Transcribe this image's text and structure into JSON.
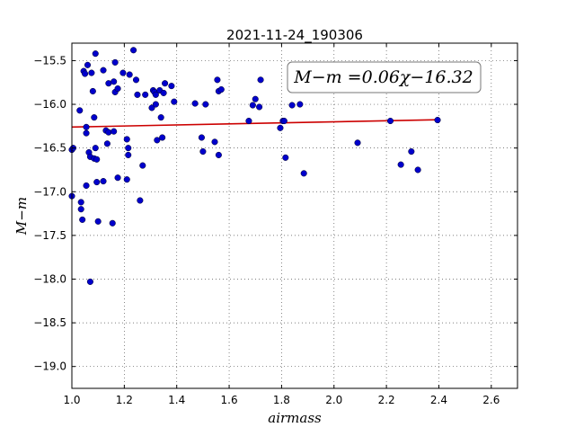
{
  "chart_data": {
    "type": "scatter",
    "title": "2021-11-24_190306",
    "xlabel": "airmass",
    "ylabel": "M−m",
    "xlim": [
      1.0,
      2.7
    ],
    "ylim": [
      -19.25,
      -15.3
    ],
    "xticks": [
      "1.0",
      "1.2",
      "1.4",
      "1.6",
      "1.8",
      "2.0",
      "2.2",
      "2.4",
      "2.6"
    ],
    "yticks": [
      "−15.5",
      "−16.0",
      "−16.5",
      "−17.0",
      "−17.5",
      "−18.0",
      "−18.5",
      "−19.0"
    ],
    "grid": true,
    "annotation": "M−m =0.06χ−16.32",
    "fit": {
      "slope": 0.06,
      "intercept": -16.32,
      "color": "#cc0000"
    },
    "point_color": "#0000cc",
    "points": [
      [
        1.0,
        -16.52
      ],
      [
        1.005,
        -16.5
      ],
      [
        1.0,
        -17.05
      ],
      [
        1.03,
        -16.07
      ],
      [
        1.035,
        -17.12
      ],
      [
        1.035,
        -17.2
      ],
      [
        1.04,
        -17.32
      ],
      [
        1.045,
        -15.62
      ],
      [
        1.05,
        -15.65
      ],
      [
        1.055,
        -16.26
      ],
      [
        1.055,
        -16.33
      ],
      [
        1.055,
        -16.93
      ],
      [
        1.06,
        -15.55
      ],
      [
        1.065,
        -16.55
      ],
      [
        1.07,
        -16.6
      ],
      [
        1.07,
        -18.03
      ],
      [
        1.075,
        -15.64
      ],
      [
        1.08,
        -15.85
      ],
      [
        1.085,
        -16.15
      ],
      [
        1.085,
        -16.62
      ],
      [
        1.09,
        -16.5
      ],
      [
        1.09,
        -15.42
      ],
      [
        1.095,
        -16.63
      ],
      [
        1.095,
        -16.89
      ],
      [
        1.1,
        -17.34
      ],
      [
        1.12,
        -16.88
      ],
      [
        1.12,
        -15.61
      ],
      [
        1.13,
        -16.3
      ],
      [
        1.135,
        -16.45
      ],
      [
        1.14,
        -15.76
      ],
      [
        1.14,
        -16.32
      ],
      [
        1.155,
        -17.36
      ],
      [
        1.16,
        -16.31
      ],
      [
        1.16,
        -15.74
      ],
      [
        1.165,
        -15.52
      ],
      [
        1.165,
        -15.86
      ],
      [
        1.175,
        -15.82
      ],
      [
        1.175,
        -16.84
      ],
      [
        1.195,
        -15.64
      ],
      [
        1.21,
        -16.4
      ],
      [
        1.21,
        -16.86
      ],
      [
        1.215,
        -16.58
      ],
      [
        1.215,
        -16.5
      ],
      [
        1.22,
        -15.66
      ],
      [
        1.235,
        -15.38
      ],
      [
        1.245,
        -15.72
      ],
      [
        1.25,
        -15.89
      ],
      [
        1.26,
        -17.1
      ],
      [
        1.27,
        -16.7
      ],
      [
        1.28,
        -15.89
      ],
      [
        1.305,
        -16.04
      ],
      [
        1.31,
        -15.84
      ],
      [
        1.315,
        -15.86
      ],
      [
        1.32,
        -16.0
      ],
      [
        1.32,
        -15.89
      ],
      [
        1.325,
        -16.41
      ],
      [
        1.335,
        -15.84
      ],
      [
        1.34,
        -16.15
      ],
      [
        1.345,
        -16.38
      ],
      [
        1.35,
        -15.87
      ],
      [
        1.355,
        -15.76
      ],
      [
        1.38,
        -15.79
      ],
      [
        1.39,
        -15.97
      ],
      [
        1.47,
        -15.99
      ],
      [
        1.495,
        -16.38
      ],
      [
        1.5,
        -16.54
      ],
      [
        1.51,
        -16.0
      ],
      [
        1.545,
        -16.43
      ],
      [
        1.555,
        -15.72
      ],
      [
        1.56,
        -15.85
      ],
      [
        1.56,
        -16.58
      ],
      [
        1.57,
        -15.83
      ],
      [
        1.675,
        -16.19
      ],
      [
        1.69,
        -16.01
      ],
      [
        1.7,
        -15.94
      ],
      [
        1.715,
        -16.03
      ],
      [
        1.72,
        -15.72
      ],
      [
        1.795,
        -16.27
      ],
      [
        1.805,
        -16.19
      ],
      [
        1.81,
        -16.19
      ],
      [
        1.815,
        -16.61
      ],
      [
        1.84,
        -16.01
      ],
      [
        1.87,
        -16.0
      ],
      [
        1.885,
        -16.79
      ],
      [
        2.09,
        -16.44
      ],
      [
        2.215,
        -16.19
      ],
      [
        2.255,
        -16.69
      ],
      [
        2.295,
        -16.54
      ],
      [
        2.32,
        -16.75
      ],
      [
        2.395,
        -16.18
      ]
    ]
  }
}
